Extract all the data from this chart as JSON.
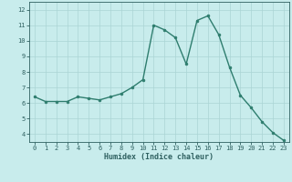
{
  "x": [
    0,
    1,
    2,
    3,
    4,
    5,
    6,
    7,
    8,
    9,
    10,
    11,
    12,
    13,
    14,
    15,
    16,
    17,
    18,
    19,
    20,
    21,
    22,
    23
  ],
  "y": [
    6.4,
    6.1,
    6.1,
    6.1,
    6.4,
    6.3,
    6.2,
    6.4,
    6.6,
    7.0,
    7.5,
    11.0,
    10.7,
    10.2,
    8.5,
    11.3,
    11.6,
    10.4,
    8.3,
    6.5,
    5.7,
    4.8,
    4.1,
    3.6
  ],
  "line_color": "#2e7d6e",
  "marker": "o",
  "marker_size": 2.0,
  "linewidth": 1.0,
  "xlabel": "Humidex (Indice chaleur)",
  "xlim": [
    -0.5,
    23.5
  ],
  "ylim": [
    3.5,
    12.5
  ],
  "yticks": [
    4,
    5,
    6,
    7,
    8,
    9,
    10,
    11,
    12
  ],
  "xticks": [
    0,
    1,
    2,
    3,
    4,
    5,
    6,
    7,
    8,
    9,
    10,
    11,
    12,
    13,
    14,
    15,
    16,
    17,
    18,
    19,
    20,
    21,
    22,
    23
  ],
  "bg_color": "#c8ecec",
  "grid_color": "#aad4d4",
  "tick_color": "#2e6060",
  "label_color": "#2e6060",
  "font_family": "monospace",
  "tick_fontsize": 5.0,
  "xlabel_fontsize": 6.0
}
